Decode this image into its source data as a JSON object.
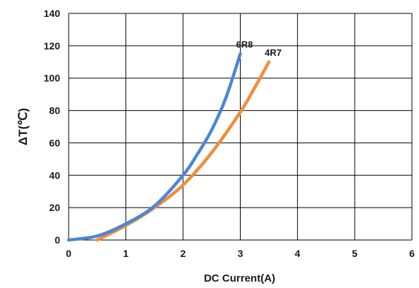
{
  "chart_data": {
    "type": "line",
    "xlabel": "DC Current(A)",
    "ylabel": "ΔT(℃)",
    "xlim": [
      0,
      6
    ],
    "ylim": [
      0,
      140
    ],
    "x_ticks": [
      "0",
      "1",
      "2",
      "3",
      "4",
      "5",
      "6"
    ],
    "y_ticks": [
      "0",
      "20",
      "40",
      "60",
      "80",
      "100",
      "120",
      "140"
    ],
    "grid": true,
    "series": [
      {
        "name": "6R8",
        "color": "#4a86d8",
        "x": [
          0,
          0.5,
          1.0,
          1.5,
          2.0,
          2.25,
          2.5,
          2.75,
          3.0
        ],
        "y": [
          0,
          2.5,
          10,
          21,
          40,
          53,
          68,
          88,
          115
        ]
      },
      {
        "name": "4R7",
        "color": "#f28c3a",
        "x": [
          0.5,
          1.0,
          1.5,
          2.0,
          2.5,
          3.0,
          3.25,
          3.5
        ],
        "y": [
          0,
          9,
          20,
          34,
          54,
          79,
          94,
          110
        ]
      }
    ]
  }
}
